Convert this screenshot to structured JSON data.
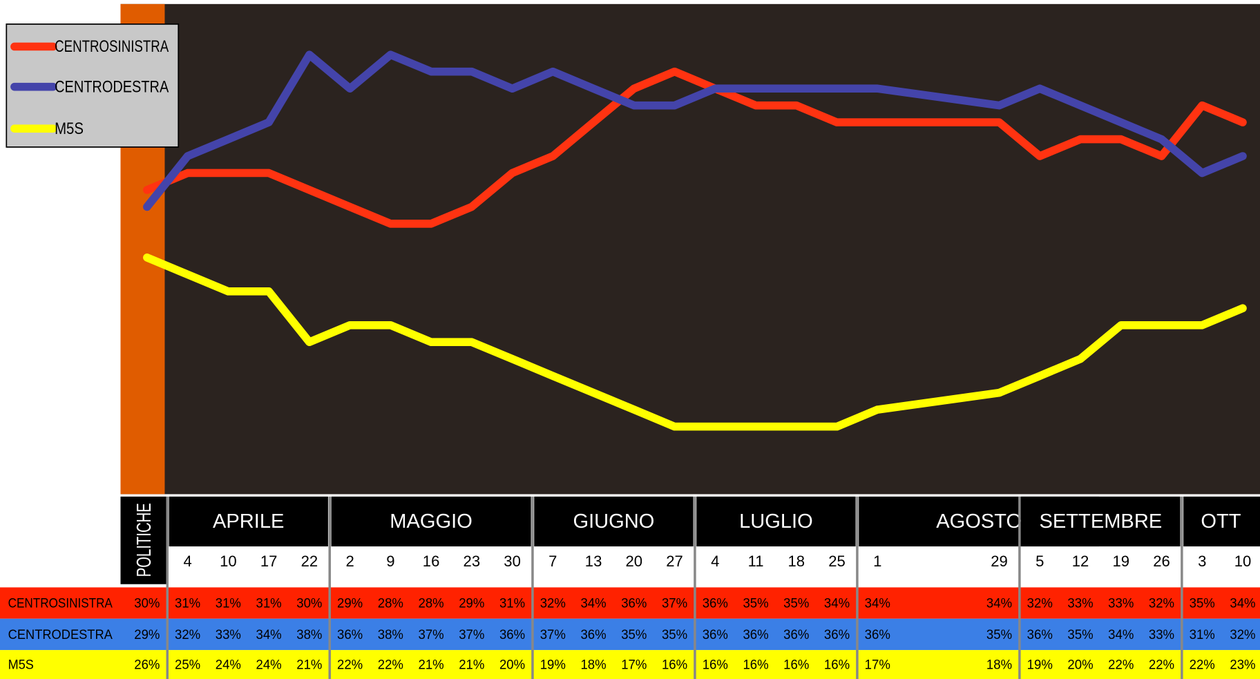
{
  "chart_data": {
    "type": "line",
    "categories": [
      "POLITICHE",
      "4",
      "10",
      "17",
      "22",
      "2",
      "9",
      "16",
      "23",
      "30",
      "7",
      "13",
      "20",
      "27",
      "4",
      "11",
      "18",
      "25",
      "1",
      "29",
      "5",
      "12",
      "19",
      "26",
      "3",
      "10"
    ],
    "months": [
      "APRILE",
      "MAGGIO",
      "GIUGNO",
      "LUGLIO",
      "AGOSTO",
      "SETTEMBRE",
      "OTT"
    ],
    "ylim": [
      12,
      41
    ],
    "series": [
      {
        "name": "CENTROSINISTRA",
        "color": "#ff3311",
        "row_color": "#ff2200",
        "values": [
          30,
          31,
          31,
          31,
          30,
          29,
          28,
          28,
          29,
          31,
          32,
          34,
          36,
          37,
          36,
          35,
          35,
          34,
          34,
          34,
          32,
          33,
          33,
          32,
          35,
          34
        ],
        "value_labels": [
          "30%",
          "31%",
          "31%",
          "31%",
          "30%",
          "29%",
          "28%",
          "28%",
          "29%",
          "31%",
          "32%",
          "34%",
          "36%",
          "37%",
          "36%",
          "35%",
          "35%",
          "34%",
          "34%",
          "34%",
          "32%",
          "33%",
          "33%",
          "32%",
          "35%",
          "34%"
        ]
      },
      {
        "name": "CENTRODESTRA",
        "color": "#4444aa",
        "row_color": "#3b7fe6",
        "values": [
          29,
          32,
          33,
          34,
          38,
          36,
          38,
          37,
          37,
          36,
          37,
          36,
          35,
          35,
          36,
          36,
          36,
          36,
          36,
          35,
          36,
          35,
          34,
          33,
          31,
          32
        ],
        "value_labels": [
          "29%",
          "32%",
          "33%",
          "34%",
          "38%",
          "36%",
          "38%",
          "37%",
          "37%",
          "36%",
          "37%",
          "36%",
          "35%",
          "35%",
          "36%",
          "36%",
          "36%",
          "36%",
          "36%",
          "35%",
          "36%",
          "35%",
          "34%",
          "33%",
          "31%",
          "32%"
        ]
      },
      {
        "name": "M5S",
        "color": "#ffff00",
        "row_color": "#ffff00",
        "values": [
          26,
          25,
          24,
          24,
          21,
          22,
          22,
          21,
          21,
          20,
          19,
          18,
          17,
          16,
          16,
          16,
          16,
          16,
          17,
          18,
          19,
          20,
          22,
          22,
          22,
          23
        ],
        "value_labels": [
          "26%",
          "25%",
          "24%",
          "24%",
          "21%",
          "22%",
          "22%",
          "21%",
          "21%",
          "20%",
          "19%",
          "18%",
          "17%",
          "16%",
          "16%",
          "16%",
          "16%",
          "16%",
          "17%",
          "18%",
          "19%",
          "20%",
          "22%",
          "22%",
          "22%",
          "23%"
        ]
      }
    ]
  }
}
